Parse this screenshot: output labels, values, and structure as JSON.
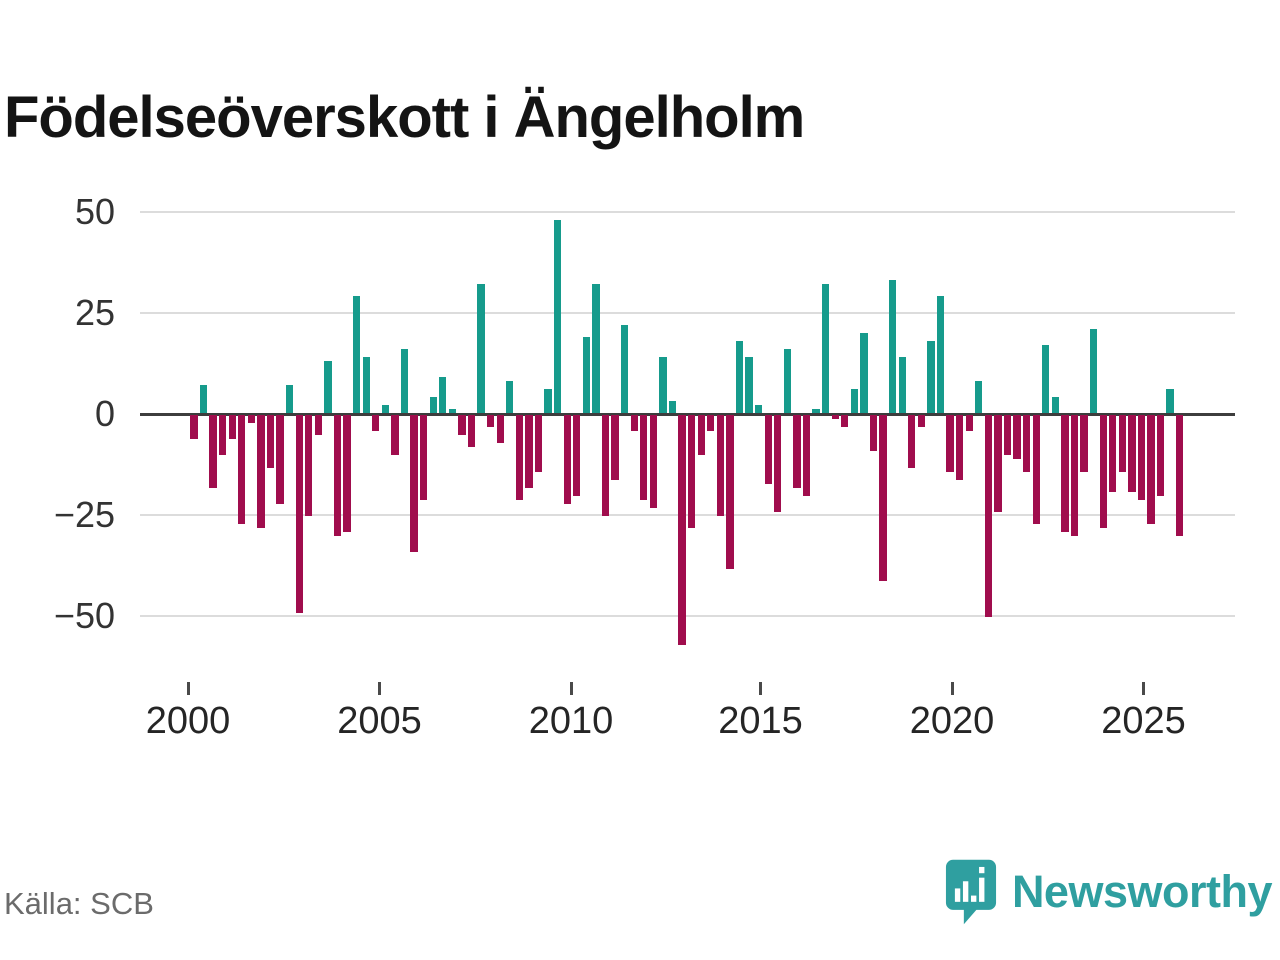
{
  "title": "Födelseöverskott i Ängelholm",
  "source": "Källa: SCB",
  "logo": {
    "text": "Newsworthy"
  },
  "colors": {
    "positive": "#169b8c",
    "negative": "#a00d4d",
    "grid": "#dcdcdc",
    "axis": "#3d3d3d",
    "logo_teal": "#2f9fa0"
  },
  "chart_data": {
    "type": "bar",
    "title": "Födelseöverskott i Ängelholm",
    "xlabel": "",
    "ylabel": "",
    "y_ticks": [
      50,
      25,
      0,
      -25,
      -50
    ],
    "ylim": [
      -60,
      55
    ],
    "x_tick_labels": [
      "2000",
      "2005",
      "2010",
      "2015",
      "2020",
      "2025"
    ],
    "frequency": "quarterly",
    "start_year": 2000,
    "start_quarter": 1,
    "legend": "none",
    "grid": "horizontal",
    "series": [
      {
        "name": "Födelseöverskott",
        "values": [
          -6,
          7,
          -18,
          -10,
          -6,
          -27,
          -2,
          -28,
          -13,
          -22,
          7,
          -49,
          -25,
          -5,
          13,
          -30,
          -29,
          29,
          14,
          -4,
          2,
          -10,
          16,
          -34,
          -21,
          4,
          9,
          1,
          -5,
          -8,
          32,
          -3,
          -7,
          8,
          -21,
          -18,
          -14,
          6,
          48,
          -22,
          -20,
          19,
          32,
          -25,
          -16,
          22,
          -4,
          -21,
          -23,
          14,
          3,
          -57,
          -28,
          -10,
          -4,
          -25,
          -38,
          18,
          14,
          2,
          -17,
          -24,
          16,
          -18,
          -20,
          1,
          32,
          -1,
          -3,
          6,
          20,
          -9,
          -41,
          33,
          14,
          -13,
          -3,
          18,
          29,
          -14,
          -16,
          -4,
          8,
          -50,
          -24,
          -10,
          -11,
          -14,
          -27,
          17,
          4,
          -29,
          -30,
          -14,
          21,
          -28,
          -19,
          -14,
          -19,
          -21,
          -27,
          -20,
          6,
          -30
        ]
      }
    ]
  }
}
